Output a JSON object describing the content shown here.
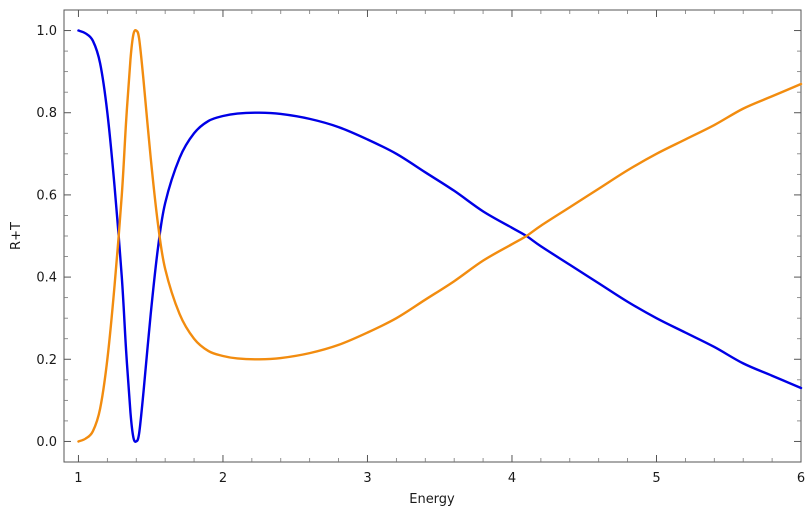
{
  "chart_data": {
    "type": "line",
    "title": "",
    "xlabel": "Energy",
    "ylabel": "R+T",
    "xlim": [
      0.9,
      6.0
    ],
    "ylim": [
      -0.05,
      1.05
    ],
    "grid": false,
    "x_ticks": [
      {
        "value": 1,
        "label": "1"
      },
      {
        "value": 2,
        "label": "2"
      },
      {
        "value": 3,
        "label": "3"
      },
      {
        "value": 4,
        "label": "4"
      },
      {
        "value": 5,
        "label": "5"
      },
      {
        "value": 6,
        "label": "6"
      }
    ],
    "y_ticks": [
      {
        "value": 0.0,
        "label": "0.0"
      },
      {
        "value": 0.2,
        "label": "0.2"
      },
      {
        "value": 0.4,
        "label": "0.4"
      },
      {
        "value": 0.6,
        "label": "0.6"
      },
      {
        "value": 0.8,
        "label": "0.8"
      },
      {
        "value": 1.0,
        "label": "1.0"
      }
    ],
    "series": [
      {
        "color": "#0000e6",
        "points": [
          [
            1.0,
            1.0
          ],
          [
            1.05,
            0.993
          ],
          [
            1.1,
            0.975
          ],
          [
            1.15,
            0.92
          ],
          [
            1.2,
            0.8
          ],
          [
            1.25,
            0.62
          ],
          [
            1.3,
            0.4
          ],
          [
            1.33,
            0.22
          ],
          [
            1.36,
            0.07
          ],
          [
            1.38,
            0.01
          ],
          [
            1.4,
            0.0
          ],
          [
            1.42,
            0.02
          ],
          [
            1.45,
            0.12
          ],
          [
            1.5,
            0.31
          ],
          [
            1.55,
            0.47
          ],
          [
            1.6,
            0.58
          ],
          [
            1.7,
            0.69
          ],
          [
            1.8,
            0.75
          ],
          [
            1.9,
            0.78
          ],
          [
            2.0,
            0.792
          ],
          [
            2.1,
            0.798
          ],
          [
            2.25,
            0.8
          ],
          [
            2.4,
            0.797
          ],
          [
            2.6,
            0.785
          ],
          [
            2.8,
            0.765
          ],
          [
            3.0,
            0.735
          ],
          [
            3.2,
            0.7
          ],
          [
            3.4,
            0.655
          ],
          [
            3.6,
            0.61
          ],
          [
            3.8,
            0.56
          ],
          [
            4.0,
            0.52
          ],
          [
            4.1,
            0.5
          ],
          [
            4.2,
            0.475
          ],
          [
            4.4,
            0.43
          ],
          [
            4.6,
            0.385
          ],
          [
            4.8,
            0.34
          ],
          [
            5.0,
            0.3
          ],
          [
            5.2,
            0.265
          ],
          [
            5.4,
            0.23
          ],
          [
            5.6,
            0.19
          ],
          [
            5.8,
            0.16
          ],
          [
            6.0,
            0.13
          ]
        ]
      },
      {
        "color": "#f28c0f",
        "points": [
          [
            1.0,
            0.0
          ],
          [
            1.05,
            0.007
          ],
          [
            1.1,
            0.025
          ],
          [
            1.15,
            0.08
          ],
          [
            1.2,
            0.2
          ],
          [
            1.25,
            0.38
          ],
          [
            1.3,
            0.6
          ],
          [
            1.33,
            0.78
          ],
          [
            1.36,
            0.93
          ],
          [
            1.38,
            0.99
          ],
          [
            1.4,
            1.0
          ],
          [
            1.42,
            0.98
          ],
          [
            1.45,
            0.88
          ],
          [
            1.5,
            0.69
          ],
          [
            1.55,
            0.53
          ],
          [
            1.6,
            0.42
          ],
          [
            1.7,
            0.31
          ],
          [
            1.8,
            0.25
          ],
          [
            1.9,
            0.22
          ],
          [
            2.0,
            0.208
          ],
          [
            2.1,
            0.202
          ],
          [
            2.25,
            0.2
          ],
          [
            2.4,
            0.203
          ],
          [
            2.6,
            0.215
          ],
          [
            2.8,
            0.235
          ],
          [
            3.0,
            0.265
          ],
          [
            3.2,
            0.3
          ],
          [
            3.4,
            0.345
          ],
          [
            3.6,
            0.39
          ],
          [
            3.8,
            0.44
          ],
          [
            4.0,
            0.48
          ],
          [
            4.1,
            0.5
          ],
          [
            4.2,
            0.525
          ],
          [
            4.4,
            0.57
          ],
          [
            4.6,
            0.615
          ],
          [
            4.8,
            0.66
          ],
          [
            5.0,
            0.7
          ],
          [
            5.2,
            0.735
          ],
          [
            5.4,
            0.77
          ],
          [
            5.6,
            0.81
          ],
          [
            5.8,
            0.84
          ],
          [
            6.0,
            0.87
          ]
        ]
      }
    ]
  }
}
